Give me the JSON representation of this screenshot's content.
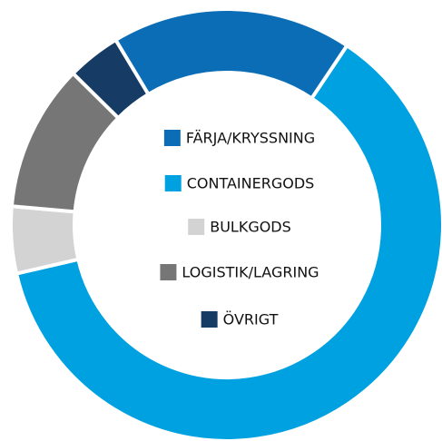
{
  "chart_data": {
    "type": "donut",
    "categories": [
      "FÄRJA/KRYSSNING",
      "CONTAINERGODS",
      "BULKGODS",
      "LOGISTIK/LAGRING",
      "ÖVRIGT"
    ],
    "values": [
      18,
      62,
      5,
      11,
      4
    ],
    "colors": [
      "#0b6db5",
      "#00a1e0",
      "#d3d3d3",
      "#767676",
      "#163b64"
    ],
    "start_angle": -31,
    "legend": "center"
  }
}
